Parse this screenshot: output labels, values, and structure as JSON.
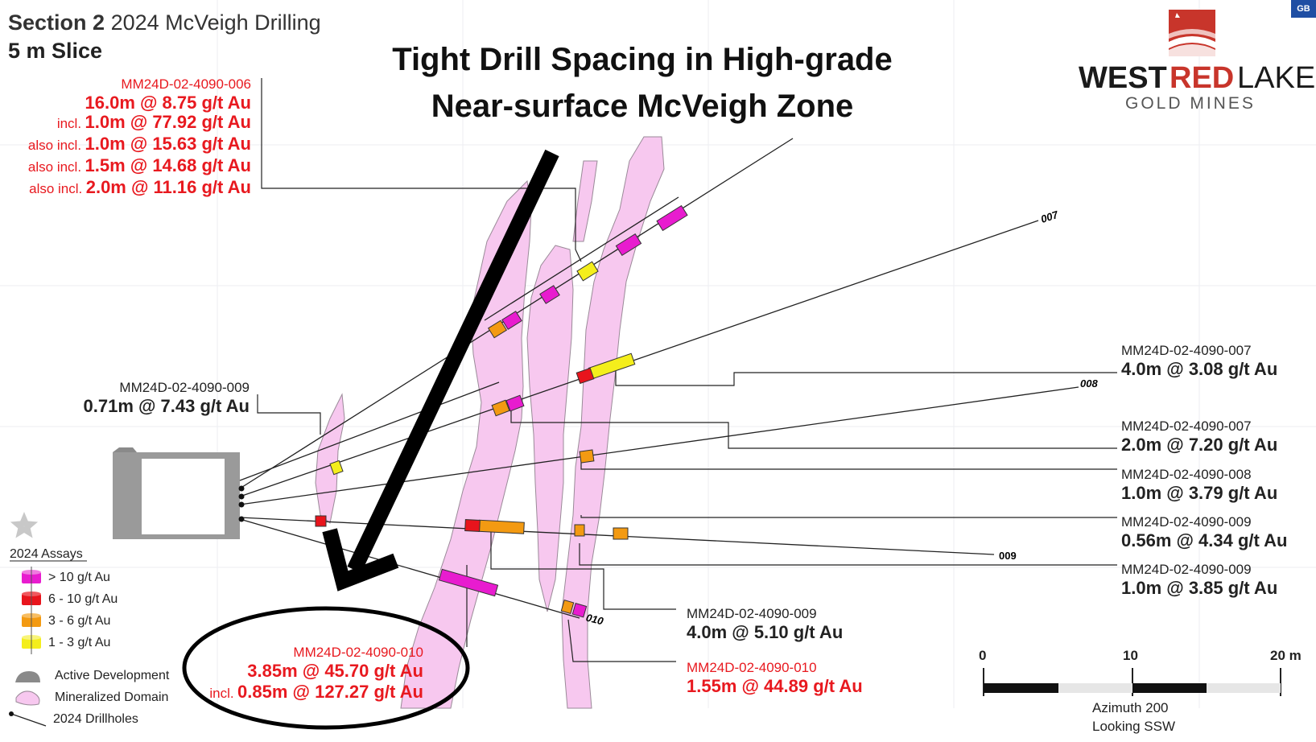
{
  "header": {
    "section_bold": "Section 2",
    "section_rest": "2024 McVeigh Drilling",
    "slice": "5 m Slice"
  },
  "headline": {
    "line1": "Tight Drill Spacing in High-grade",
    "line2": "Near-surface McVeigh Zone"
  },
  "badge": "GB",
  "logo": {
    "word1": "WEST",
    "word2": "RED",
    "word3": "LAKE",
    "sub": "GOLD MINES"
  },
  "callout_006": {
    "hole": "MM24D-02-4090-006",
    "main": "16.0m @ 8.75 g/t Au",
    "rows": [
      {
        "prefix": "incl.",
        "value": "1.0m @ 77.92 g/t Au"
      },
      {
        "prefix": "also incl.",
        "value": "1.0m @ 15.63 g/t Au"
      },
      {
        "prefix": "also incl.",
        "value": "1.5m @ 14.68 g/t Au"
      },
      {
        "prefix": "also incl.",
        "value": "2.0m @ 11.16 g/t Au"
      }
    ]
  },
  "callout_009_left": {
    "hole": "MM24D-02-4090-009",
    "value": "0.71m @ 7.43 g/t Au"
  },
  "callouts_right": [
    {
      "hole": "MM24D-02-4090-007",
      "value": "4.0m @ 3.08 g/t Au"
    },
    {
      "hole": "MM24D-02-4090-007",
      "value": "2.0m @ 7.20 g/t Au"
    },
    {
      "hole": "MM24D-02-4090-008",
      "value": "1.0m @ 3.79 g/t Au"
    },
    {
      "hole": "MM24D-02-4090-009",
      "value": "0.56m @ 4.34 g/t Au"
    },
    {
      "hole": "MM24D-02-4090-009",
      "value": "1.0m @ 3.85 g/t Au"
    }
  ],
  "callout_009_bottom": {
    "hole": "MM24D-02-4090-009",
    "value": "4.0m @ 5.10 g/t Au"
  },
  "callout_010_circle": {
    "hole": "MM24D-02-4090-010",
    "main": "3.85m @ 45.70 g/t Au",
    "incl_prefix": "incl.",
    "incl_value": "0.85m @ 127.27 g/t Au"
  },
  "callout_010_right": {
    "hole": "MM24D-02-4090-010",
    "value": "1.55m @ 44.89 g/t Au"
  },
  "hole_tags": {
    "h007": "007",
    "h008": "008",
    "h009": "009",
    "h010": "010"
  },
  "legend": {
    "title": "2024 Assays",
    "assays": [
      {
        "label": "> 10 g/t Au",
        "color": "#e81ccf"
      },
      {
        "label": "6 - 10 g/t Au",
        "color": "#e8141c"
      },
      {
        "label": "3 - 6 g/t Au",
        "color": "#f39a12"
      },
      {
        "label": "1 - 3 g/t Au",
        "color": "#f4ee1c"
      }
    ],
    "features": [
      {
        "label": "Active Development",
        "icon": "development-icon"
      },
      {
        "label": "Mineralized Domain",
        "icon": "domain-icon"
      },
      {
        "label": "2024 Drillholes",
        "icon": "drillhole-icon"
      }
    ]
  },
  "scale": {
    "ticks": [
      "0",
      "10",
      "20 m"
    ],
    "azimuth": "Azimuth 200",
    "looking": "Looking SSW"
  },
  "colors": {
    "domain_fill": "#f7c8ef",
    "domain_stroke": "#9a8a98",
    "red_text": "#e8191f",
    "development": "#9a9a9a"
  }
}
